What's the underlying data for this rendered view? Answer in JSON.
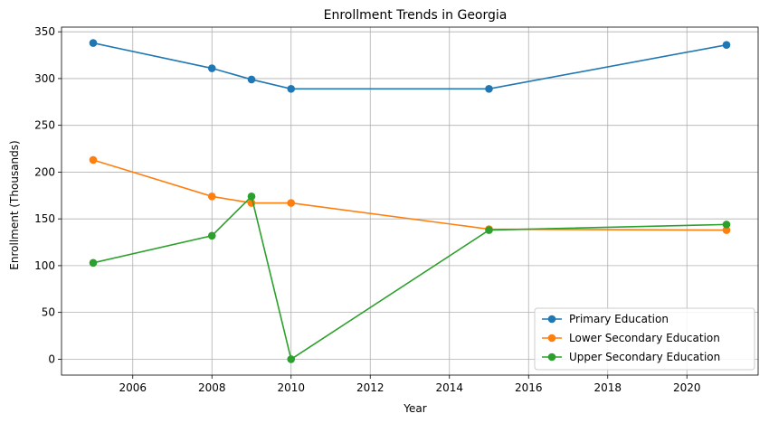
{
  "chart_data": {
    "type": "line",
    "title": "Enrollment Trends in Georgia",
    "xlabel": "Year",
    "ylabel": "Enrollment (Thousands)",
    "xlim": [
      2004.2,
      2021.8
    ],
    "ylim": [
      -17,
      355
    ],
    "xticks": [
      2006,
      2008,
      2010,
      2012,
      2014,
      2016,
      2018,
      2020
    ],
    "yticks": [
      0,
      50,
      100,
      150,
      200,
      250,
      300,
      350
    ],
    "grid": true,
    "legend_position": "bottom-right",
    "series": [
      {
        "name": "Primary Education",
        "color": "#1f77b4",
        "x": [
          2005,
          2008,
          2009,
          2010,
          2015,
          2021
        ],
        "y": [
          338,
          311,
          299,
          289,
          289,
          336
        ]
      },
      {
        "name": "Lower Secondary Education",
        "color": "#ff7f0e",
        "x": [
          2005,
          2008,
          2009,
          2010,
          2015,
          2021
        ],
        "y": [
          213,
          174,
          167,
          167,
          139,
          138
        ]
      },
      {
        "name": "Upper Secondary Education",
        "color": "#2ca02c",
        "x": [
          2005,
          2008,
          2009,
          2010,
          2015,
          2021
        ],
        "y": [
          103,
          132,
          174,
          0,
          138,
          144
        ]
      }
    ]
  }
}
